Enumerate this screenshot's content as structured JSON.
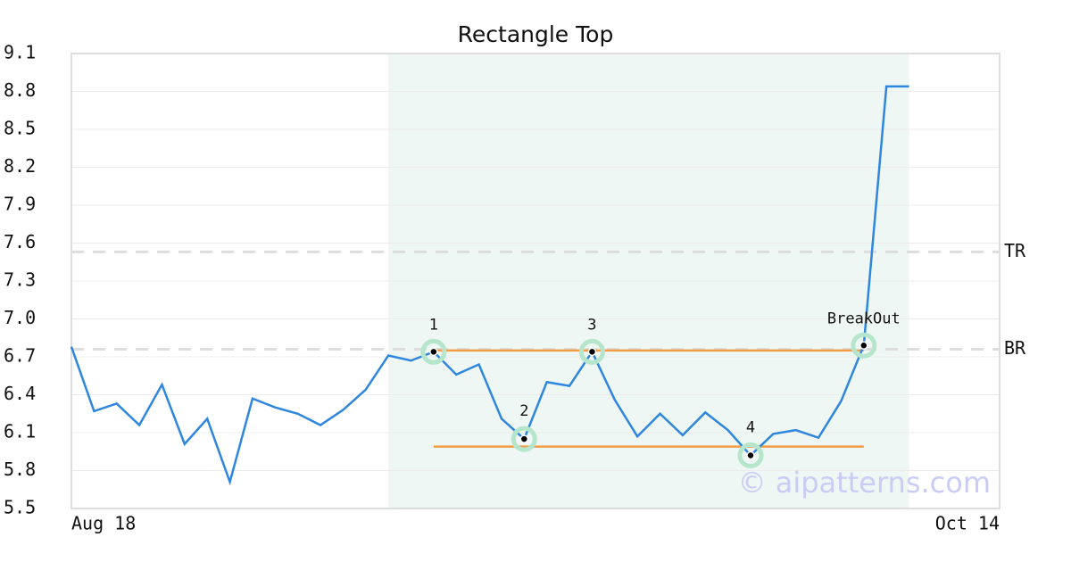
{
  "chart_data": {
    "type": "line",
    "title": "Rectangle Top",
    "categories": [
      "Aug 18",
      null,
      null,
      null,
      null,
      null,
      null,
      null,
      null,
      null,
      null,
      null,
      null,
      null,
      null,
      null,
      null,
      null,
      null,
      null,
      null,
      null,
      null,
      null,
      null,
      null,
      null,
      null,
      null,
      null,
      null,
      null,
      null,
      null,
      null,
      null,
      null,
      null,
      null,
      null,
      null,
      "Oct 14"
    ],
    "values": [
      6.78,
      6.27,
      6.33,
      6.16,
      6.48,
      6.01,
      6.21,
      5.71,
      6.37,
      6.3,
      6.25,
      6.16,
      6.28,
      6.44,
      6.71,
      6.67,
      6.74,
      6.56,
      6.64,
      6.21,
      6.05,
      6.5,
      6.47,
      6.74,
      6.36,
      6.07,
      6.25,
      6.08,
      6.26,
      6.12,
      5.92,
      6.09,
      6.12,
      6.06,
      6.35,
      6.79,
      8.84,
      8.84,
      null,
      null,
      null,
      null
    ],
    "color": "#2e86de",
    "ylim": [
      5.5,
      9.1
    ],
    "yticks": [
      5.5,
      5.8,
      6.1,
      6.4,
      6.7,
      {
        "value": 7,
        "label": "7.0"
      },
      7.3,
      7.6,
      7.9,
      8.2,
      8.5,
      8.8,
      9.1
    ],
    "grid": true,
    "highlight": {
      "start": 14,
      "end": 37,
      "color": "#eef7f3"
    },
    "levels": [
      {
        "start": 16,
        "end": 35,
        "value": 6.75,
        "color": "#f39c45"
      },
      {
        "start": 16,
        "end": 35,
        "value": 5.99,
        "color": "#f39c45"
      }
    ],
    "reference_lines": [
      {
        "label": "TR",
        "value": 7.53
      },
      {
        "label": "BR",
        "value": 6.76
      }
    ],
    "pattern_points": [
      {
        "label": "1",
        "index": 16,
        "value": 6.74
      },
      {
        "label": "2",
        "index": 20,
        "value": 6.05
      },
      {
        "label": "3",
        "index": 23,
        "value": 6.74
      },
      {
        "label": "4",
        "index": 30,
        "value": 5.92
      },
      {
        "label": "BreakOut",
        "index": 35,
        "value": 6.79
      }
    ],
    "watermark": "© aipatterns.com"
  }
}
